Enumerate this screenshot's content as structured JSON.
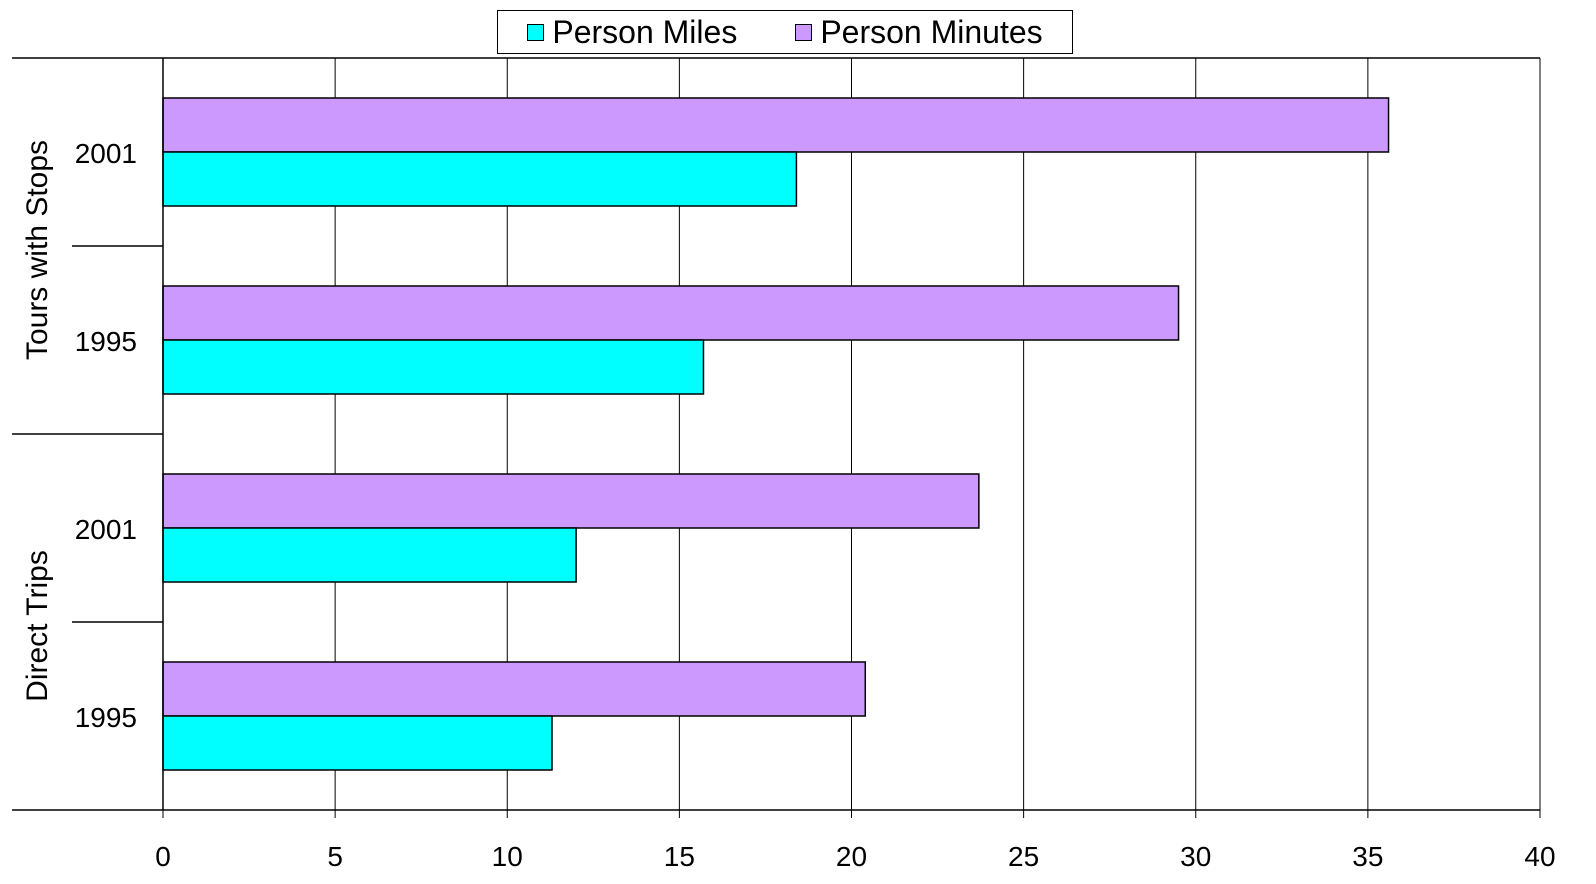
{
  "chart_data": {
    "type": "bar",
    "orientation": "horizontal",
    "groups": [
      {
        "label": "Tours with Stops",
        "categories": [
          "2001",
          "1995"
        ]
      },
      {
        "label": "Direct Trips",
        "categories": [
          "2001",
          "1995"
        ]
      }
    ],
    "categories": [
      "2001",
      "1995",
      "2001",
      "1995"
    ],
    "series": [
      {
        "name": "Person Minutes",
        "color": "#cc99ff",
        "values": [
          35.6,
          29.5,
          23.7,
          20.4
        ]
      },
      {
        "name": "Person Miles",
        "color": "#00ffff",
        "values": [
          18.4,
          15.7,
          12.0,
          11.3
        ]
      }
    ],
    "legend_order": [
      "Person Miles",
      "Person Minutes"
    ],
    "xlim": [
      0,
      40
    ],
    "xticks": [
      0,
      5,
      10,
      15,
      20,
      25,
      30,
      35,
      40
    ],
    "grid": "vertical",
    "legend_position": "top-center",
    "title": "",
    "xlabel": "",
    "ylabel": ""
  }
}
